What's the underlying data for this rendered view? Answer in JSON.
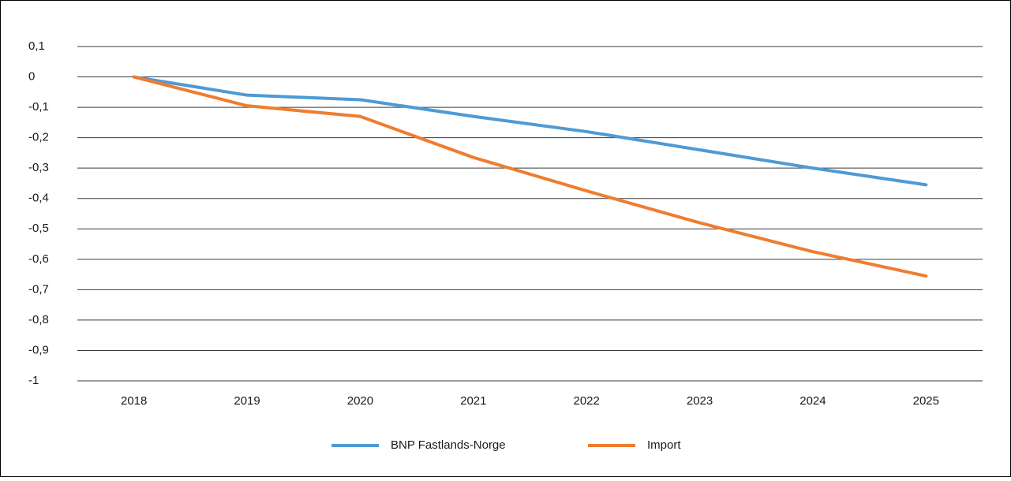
{
  "chart_data": {
    "type": "line",
    "categories": [
      "2018",
      "2019",
      "2020",
      "2021",
      "2022",
      "2023",
      "2024",
      "2025"
    ],
    "series": [
      {
        "name": "BNP Fastlands-Norge",
        "color": "#4e9ad4",
        "values": [
          0,
          -0.06,
          -0.075,
          -0.13,
          -0.18,
          -0.24,
          -0.3,
          -0.355
        ]
      },
      {
        "name": "Import",
        "color": "#ee7d31",
        "values": [
          0,
          -0.095,
          -0.13,
          -0.265,
          -0.375,
          -0.48,
          -0.575,
          -0.655
        ]
      }
    ],
    "ylim": [
      -1,
      0.1
    ],
    "yticks": [
      {
        "value": 0.1,
        "label": "0,1"
      },
      0,
      {
        "value": -0.1,
        "label": "-0,1"
      },
      {
        "value": -0.2,
        "label": "-0,2"
      },
      {
        "value": -0.3,
        "label": "-0,3"
      },
      {
        "value": -0.4,
        "label": "-0,4"
      },
      {
        "value": -0.5,
        "label": "-0,5"
      },
      {
        "value": -0.6,
        "label": "-0,6"
      },
      {
        "value": -0.7,
        "label": "-0,7"
      },
      {
        "value": -0.8,
        "label": "-0,8"
      },
      {
        "value": -0.9,
        "label": "-0,9"
      },
      -1
    ],
    "grid": true,
    "legend": "bottom"
  }
}
